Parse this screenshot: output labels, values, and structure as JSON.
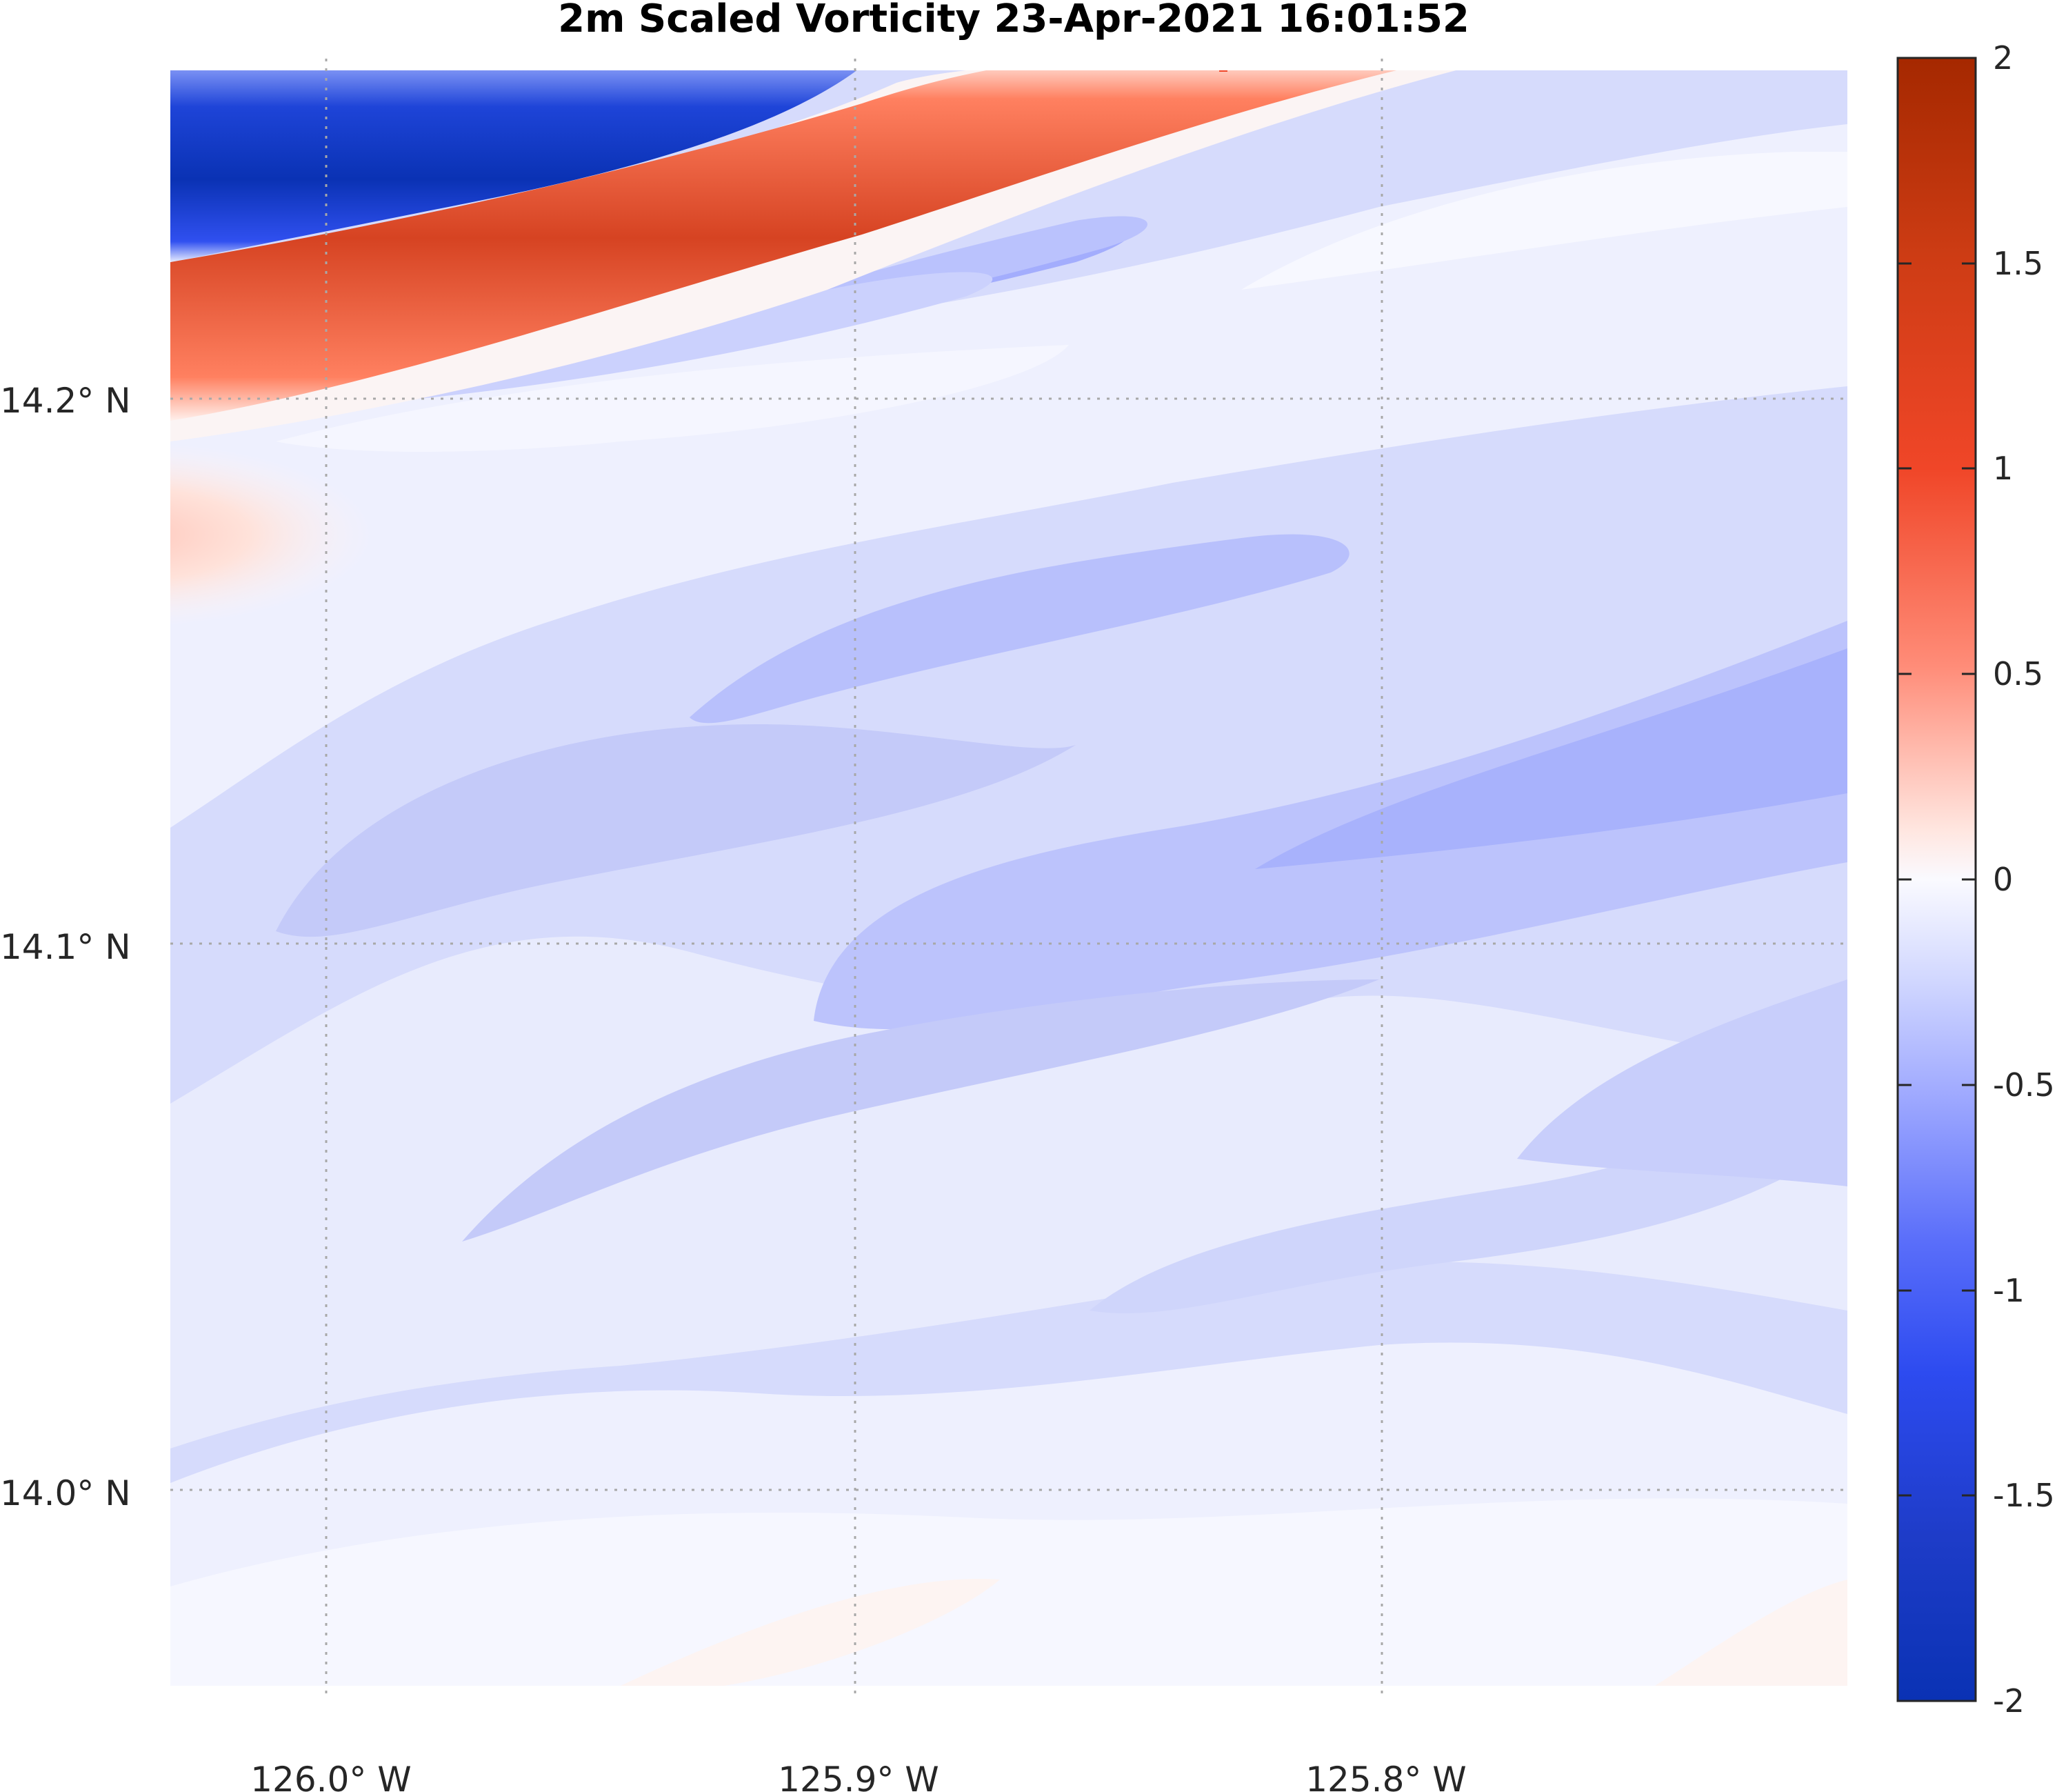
{
  "chart_data": {
    "type": "heatmap",
    "title": "2m Scaled Vorticity  23-Apr-2021 16:01:52",
    "x_axis": {
      "ticks": [
        {
          "value": -126.0,
          "label": "126.0° W"
        },
        {
          "value": -125.9,
          "label": "125.9° W"
        },
        {
          "value": -125.8,
          "label": "125.8° W"
        }
      ],
      "range": [
        -126.03,
        -125.71
      ]
    },
    "y_axis": {
      "ticks": [
        {
          "value": 14.2,
          "label": "14.2° N"
        },
        {
          "value": 14.1,
          "label": "14.1° N"
        },
        {
          "value": 14.0,
          "label": "14.0° N"
        }
      ],
      "range": [
        13.96,
        14.26
      ]
    },
    "grid": "dotted",
    "colorbar": {
      "min": -2,
      "max": 2,
      "placement": "right",
      "ticks": [
        {
          "value": 2,
          "label": "2"
        },
        {
          "value": 1.5,
          "label": "1.5"
        },
        {
          "value": 1,
          "label": "1"
        },
        {
          "value": 0.5,
          "label": "0.5"
        },
        {
          "value": 0,
          "label": "0"
        },
        {
          "value": -0.5,
          "label": "-0.5"
        },
        {
          "value": -1,
          "label": "-1"
        },
        {
          "value": -1.5,
          "label": "-1.5"
        },
        {
          "value": -2,
          "label": "-2"
        }
      ],
      "colors": {
        "neg_extreme": "#0a32b4",
        "neg_strong": "#2850f0",
        "neg_mid": "#96a5ff",
        "neg_weak": "#d2d8ff",
        "zero": "#fafaff",
        "pos_weak": "#ffd2c8",
        "pos_mid": "#ff6e50",
        "pos_strong": "#e13c1e",
        "pos_extreme": "#a52800"
      }
    },
    "features": [
      {
        "name": "negative-vorticity-band",
        "value": -1.8
      },
      {
        "name": "positive-vorticity-band",
        "value": 1.3
      },
      {
        "name": "weak-positive-patch",
        "value": 0.25
      },
      {
        "name": "moderate-negative-band",
        "value": -0.5
      }
    ]
  }
}
